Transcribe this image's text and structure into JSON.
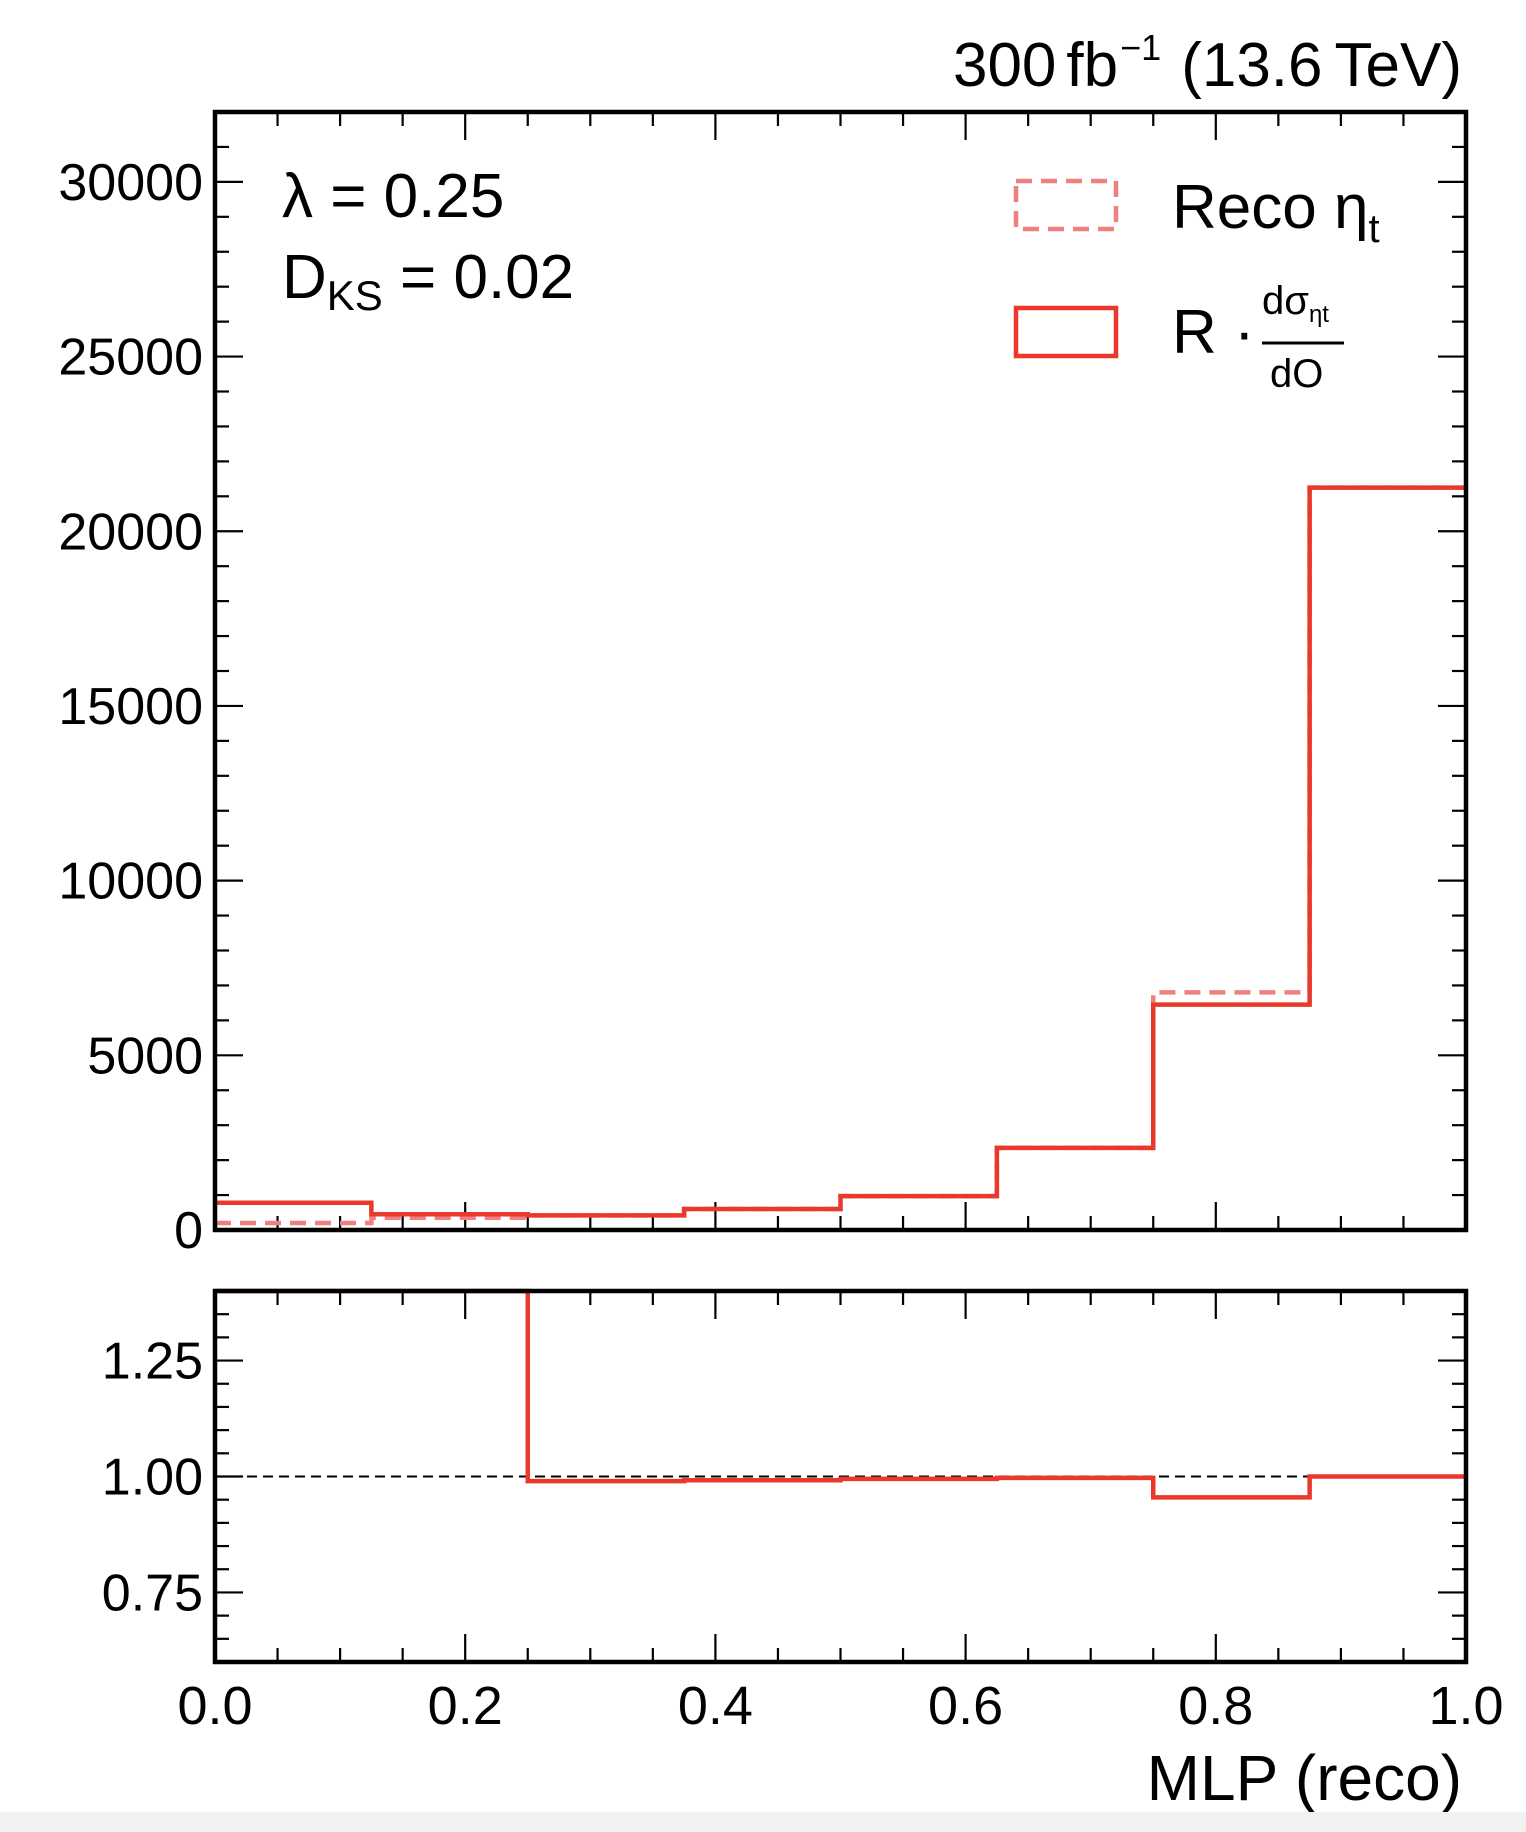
{
  "header": {
    "lumi": "300",
    "lumi_unit": "fb",
    "lumi_exp": "−1",
    "energy": "(13.6",
    "energy_unit": "TeV)"
  },
  "annotations": {
    "lambda_label": "λ = 0.25",
    "dks_main": "D",
    "dks_sub": "KS",
    "dks_value": " = 0.02"
  },
  "legend": {
    "reco_text": "Reco η",
    "reco_sub": "t",
    "model_prefix": "R ·",
    "frac_num": "dσ",
    "frac_num_sub": "ηt",
    "frac_den": "dO"
  },
  "colors": {
    "model": "#e8392b",
    "reco": "#f08080"
  },
  "chart_data": [
    {
      "type": "histogram",
      "panel": "main",
      "bin_edges": [
        0.0,
        0.125,
        0.25,
        0.375,
        0.5,
        0.625,
        0.75,
        0.875,
        1.0
      ],
      "xlim": [
        0.0,
        1.0
      ],
      "ylim": [
        0,
        32000
      ],
      "yticks": [
        0,
        5000,
        10000,
        15000,
        20000,
        25000,
        30000
      ],
      "ytick_labels": [
        "0",
        "5000",
        "10000",
        "15000",
        "20000",
        "25000",
        "30000"
      ],
      "series": [
        {
          "name": "Reco ηt",
          "style": "dashed",
          "values": [
            200,
            350,
            420,
            600,
            970,
            2350,
            6800,
            21250
          ]
        },
        {
          "name": "R · dσηt/dO",
          "style": "solid",
          "values": [
            780,
            450,
            420,
            600,
            970,
            2350,
            6450,
            21250
          ]
        }
      ],
      "legend_position": "top-right"
    },
    {
      "type": "histogram",
      "panel": "ratio",
      "bin_edges": [
        0.0,
        0.125,
        0.25,
        0.375,
        0.5,
        0.625,
        0.75,
        0.875,
        1.0
      ],
      "xlim": [
        0.0,
        1.0
      ],
      "ylim": [
        0.6,
        1.4
      ],
      "yticks": [
        0.75,
        1.0,
        1.25
      ],
      "ytick_labels": [
        "0.75",
        "1.00",
        "1.25"
      ],
      "xticks": [
        0.0,
        0.2,
        0.4,
        0.6,
        0.8,
        1.0
      ],
      "xtick_labels": [
        "0.0",
        "0.2",
        "0.4",
        "0.6",
        "0.8",
        "1.0"
      ],
      "xlabel": "MLP (reco)",
      "reference_line": 1.0,
      "series": [
        {
          "style": "solid",
          "values": [
            1.4,
            1.4,
            0.99,
            0.992,
            0.995,
            0.997,
            0.955,
            1.0
          ]
        }
      ]
    }
  ]
}
